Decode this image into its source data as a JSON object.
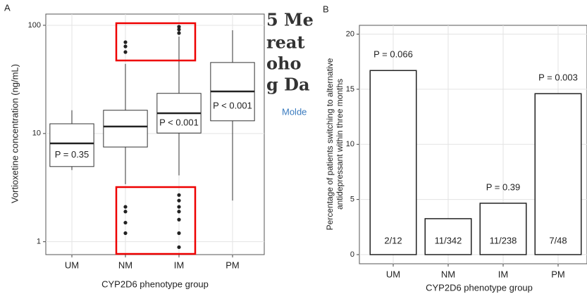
{
  "panel_labels": [
    "A",
    "B"
  ],
  "background_text": [
    "5 Me",
    "reat",
    "oho",
    "g Da",
    "Molde"
  ],
  "chart_data": [
    {
      "type": "box",
      "ylabel": "Vortioxetine concentration (ng/mL)",
      "xlabel": "CYP2D6 phenotype group",
      "categories": [
        "UM",
        "NM",
        "IM",
        "PM"
      ],
      "log_scale": true,
      "grid": true,
      "ylim": [
        0.76,
        127
      ],
      "yticks": [
        1,
        10,
        100
      ],
      "boxes": [
        {
          "whislo": 4.6,
          "q1": 4.95,
          "med": 8.1,
          "q3": 12.3,
          "whishi": 16.4,
          "fliers": []
        },
        {
          "whislo": 3.4,
          "q1": 7.5,
          "med": 11.6,
          "q3": 16.4,
          "whishi": 44,
          "fliers": [
            69.8,
            63.8,
            56.6,
            2.1,
            1.9,
            1.5,
            1.2
          ]
        },
        {
          "whislo": 4.1,
          "q1": 10.1,
          "med": 15.4,
          "q3": 23.5,
          "whishi": 78.7,
          "fliers": [
            97,
            91.5,
            84.8,
            2.7,
            2.4,
            2.1,
            1.9,
            1.6,
            1.2,
            0.89
          ]
        },
        {
          "whislo": 2.4,
          "q1": 13.1,
          "med": 24.5,
          "q3": 45.3,
          "whishi": 90,
          "fliers": []
        }
      ],
      "annotations": [
        "P = 0.35",
        null,
        "P < 0.001",
        "P < 0.001"
      ]
    },
    {
      "type": "bar",
      "ylabel": [
        "Percentage of patients switching to alternative",
        "antidepressant within three months"
      ],
      "xlabel": "CYP2D6 phenotype group",
      "categories": [
        "UM",
        "NM",
        "IM",
        "PM"
      ],
      "grid": true,
      "ylim": [
        -0.83,
        20.8
      ],
      "yticks": [
        0,
        5,
        10,
        15,
        20
      ],
      "values": [
        16.7,
        3.26,
        4.66,
        14.6
      ],
      "counts": [
        "2/12",
        "11/342",
        "11/238",
        "7/48"
      ],
      "annotations": [
        "P = 0.066",
        null,
        "P = 0.39",
        "P = 0.003"
      ]
    }
  ]
}
